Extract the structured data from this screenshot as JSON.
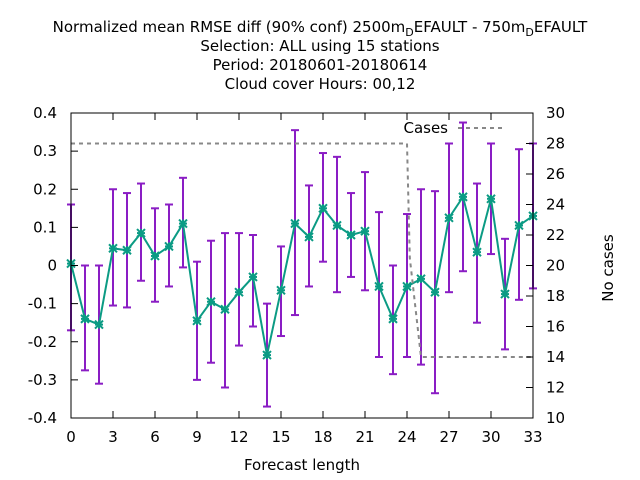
{
  "chart_data": {
    "type": "line",
    "title_lines": [
      "Normalized mean RMSE diff (90% conf) 2500m_DEFAULT - 750m_DEFAULT",
      "Selection: ALL using    15 stations",
      "Period: 20180601-20180614",
      "Cloud cover   Hours:  00,12"
    ],
    "xlabel": "Forecast length",
    "ylabel_right": "No cases",
    "xlim": [
      0,
      33
    ],
    "ylim": [
      -0.4,
      0.4
    ],
    "y2lim": [
      10,
      30
    ],
    "x_ticks": [
      0,
      3,
      6,
      9,
      12,
      15,
      18,
      21,
      24,
      27,
      30,
      33
    ],
    "y_ticks": [
      -0.4,
      -0.3,
      -0.2,
      -0.1,
      0,
      0.1,
      0.2,
      0.3,
      0.4
    ],
    "y_tick_labels": [
      "-0.4",
      "-0.3",
      "-0.2",
      "-0.1",
      "0",
      "0.1",
      "0.2",
      "0.3",
      "0.4"
    ],
    "y2_ticks": [
      10,
      12,
      14,
      16,
      18,
      20,
      22,
      24,
      26,
      28,
      30
    ],
    "series": [
      {
        "kind": "errorbar-line",
        "color": "#0b9b84",
        "errorbar_color": "#8a1dc4",
        "x": [
          0,
          1,
          2,
          3,
          4,
          5,
          6,
          7,
          8,
          9,
          10,
          11,
          12,
          13,
          14,
          15,
          16,
          17,
          18,
          19,
          20,
          21,
          22,
          23,
          24,
          25,
          26,
          27,
          28,
          29,
          30,
          31,
          32,
          33
        ],
        "y": [
          0.005,
          -0.14,
          -0.155,
          0.045,
          0.04,
          0.085,
          0.025,
          0.05,
          0.11,
          -0.145,
          -0.095,
          -0.115,
          -0.07,
          -0.03,
          -0.235,
          -0.065,
          0.11,
          0.075,
          0.15,
          0.105,
          0.08,
          0.09,
          -0.055,
          -0.14,
          -0.055,
          -0.035,
          -0.07,
          0.125,
          0.18,
          0.035,
          0.175,
          -0.075,
          0.105,
          0.13
        ],
        "y_low": [
          -0.17,
          -0.275,
          -0.31,
          -0.105,
          -0.11,
          -0.04,
          -0.095,
          -0.055,
          -0.005,
          -0.3,
          -0.255,
          -0.32,
          -0.21,
          -0.16,
          -0.37,
          -0.185,
          -0.13,
          -0.055,
          0.01,
          -0.07,
          -0.03,
          -0.065,
          -0.24,
          -0.285,
          -0.24,
          -0.26,
          -0.335,
          -0.07,
          -0.015,
          -0.15,
          0.03,
          -0.22,
          -0.09,
          -0.06
        ],
        "y_high": [
          0.16,
          0,
          0,
          0.2,
          0.19,
          0.215,
          0.15,
          0.16,
          0.23,
          0.01,
          0.065,
          0.085,
          0.085,
          0.08,
          -0.1,
          0.05,
          0.355,
          0.21,
          0.295,
          0.285,
          0.19,
          0.245,
          0.14,
          0,
          0.135,
          0.2,
          0.195,
          0.32,
          0.375,
          0.215,
          0.32,
          0.07,
          0.305,
          0.32
        ]
      },
      {
        "name": "Cases",
        "axis": "y2",
        "color": "#888888",
        "dash": true,
        "x": [
          0,
          24,
          24.2,
          25,
          33
        ],
        "y": [
          28,
          28,
          20.5,
          14,
          14
        ]
      }
    ],
    "legend": {
      "position": "top-right",
      "label": "Cases"
    },
    "grid": false
  }
}
